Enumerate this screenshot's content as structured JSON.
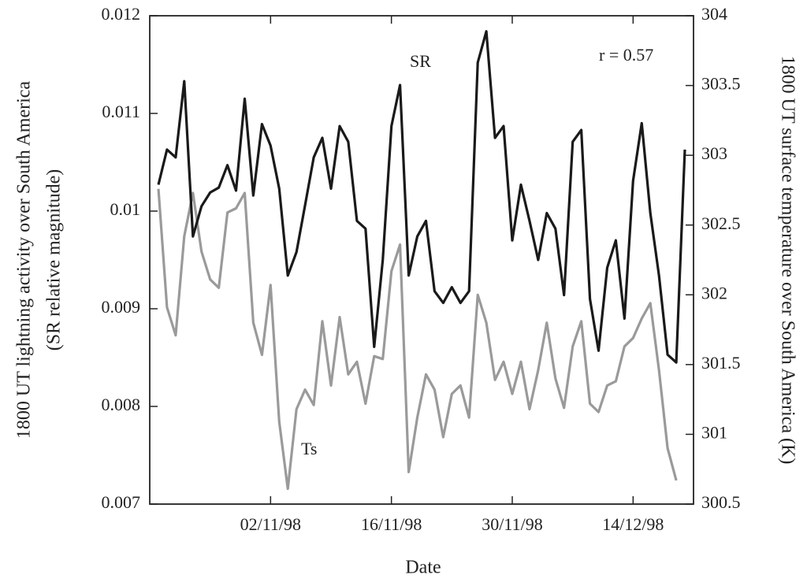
{
  "chart_data": {
    "type": "line",
    "y_label": [
      "1800 UT lightning activity over South America",
      "(SR relative magnitude)"
    ],
    "y2_label": "1800 UT surface temperature over South America (K)",
    "x_label": "Date",
    "annotation": "r = 0.57",
    "x": [
      "20/10/98",
      "21/10/98",
      "22/10/98",
      "23/10/98",
      "24/10/98",
      "25/10/98",
      "26/10/98",
      "27/10/98",
      "28/10/98",
      "29/10/98",
      "30/10/98",
      "31/10/98",
      "01/11/98",
      "02/11/98",
      "03/11/98",
      "04/11/98",
      "05/11/98",
      "06/11/98",
      "07/11/98",
      "08/11/98",
      "09/11/98",
      "10/11/98",
      "11/11/98",
      "12/11/98",
      "13/11/98",
      "14/11/98",
      "15/11/98",
      "16/11/98",
      "17/11/98",
      "18/11/98",
      "19/11/98",
      "20/11/98",
      "21/11/98",
      "22/11/98",
      "23/11/98",
      "24/11/98",
      "25/11/98",
      "26/11/98",
      "27/11/98",
      "28/11/98",
      "29/11/98",
      "30/11/98",
      "01/12/98",
      "02/12/98",
      "03/12/98",
      "04/12/98",
      "05/12/98",
      "06/12/98",
      "07/12/98",
      "08/12/98",
      "09/12/98",
      "10/12/98",
      "11/12/98",
      "12/12/98",
      "13/12/98",
      "14/12/98",
      "15/12/98",
      "16/12/98",
      "17/12/98",
      "18/12/98",
      "19/12/98",
      "20/12/98"
    ],
    "xlim": [
      "19/10/98",
      "21/12/98"
    ],
    "xticks": [
      "02/11/98",
      "16/11/98",
      "30/11/98",
      "14/12/98"
    ],
    "ylim": [
      0.007,
      0.012
    ],
    "yticks": [
      0.007,
      0.008,
      0.009,
      0.01,
      0.011,
      0.012
    ],
    "y2lim": [
      300.5,
      304
    ],
    "y2ticks": [
      300.5,
      301,
      301.5,
      302,
      302.5,
      303,
      303.5,
      304
    ],
    "series": [
      {
        "name": "SR",
        "color": "#1a1a1a",
        "values": [
          0.01027,
          0.01063,
          0.01055,
          0.01133,
          0.00974,
          0.01005,
          0.01019,
          0.01024,
          0.01047,
          0.01021,
          0.01115,
          0.01016,
          0.01089,
          0.01067,
          0.01023,
          0.00934,
          0.00958,
          0.01006,
          0.01055,
          0.01075,
          0.01023,
          0.01087,
          0.01071,
          0.0099,
          0.00982,
          0.00861,
          0.0095,
          0.01087,
          0.01129,
          0.00934,
          0.00974,
          0.0099,
          0.00918,
          0.00906,
          0.00922,
          0.00906,
          0.00918,
          0.01152,
          0.01184,
          0.01075,
          0.01087,
          0.0097,
          0.01027,
          0.0099,
          0.0095,
          0.00998,
          0.00982,
          0.00914,
          0.01071,
          0.01083,
          0.0091,
          0.00857,
          0.00942,
          0.0097,
          0.0089,
          0.01031,
          0.0109,
          0.00998,
          0.00934,
          0.00853,
          0.00845,
          0.01063
        ]
      },
      {
        "name": "Ts",
        "color": "#9a9a9a",
        "axis": "y2",
        "values": [
          302.76,
          301.91,
          301.71,
          302.42,
          302.73,
          302.31,
          302.11,
          302.05,
          302.59,
          302.62,
          302.73,
          301.8,
          301.57,
          302.07,
          301.09,
          300.61,
          301.18,
          301.32,
          301.21,
          301.81,
          301.35,
          301.84,
          301.43,
          301.52,
          301.22,
          301.56,
          301.54,
          302.17,
          302.36,
          300.73,
          301.12,
          301.43,
          301.32,
          300.98,
          301.29,
          301.35,
          301.12,
          302.0,
          301.8,
          301.39,
          301.52,
          301.29,
          301.52,
          301.18,
          301.46,
          301.8,
          301.4,
          301.19,
          301.63,
          301.81,
          301.22,
          301.16,
          301.35,
          301.38,
          301.63,
          301.69,
          301.83,
          301.94,
          301.46,
          300.9,
          300.67,
          null
        ]
      }
    ]
  }
}
